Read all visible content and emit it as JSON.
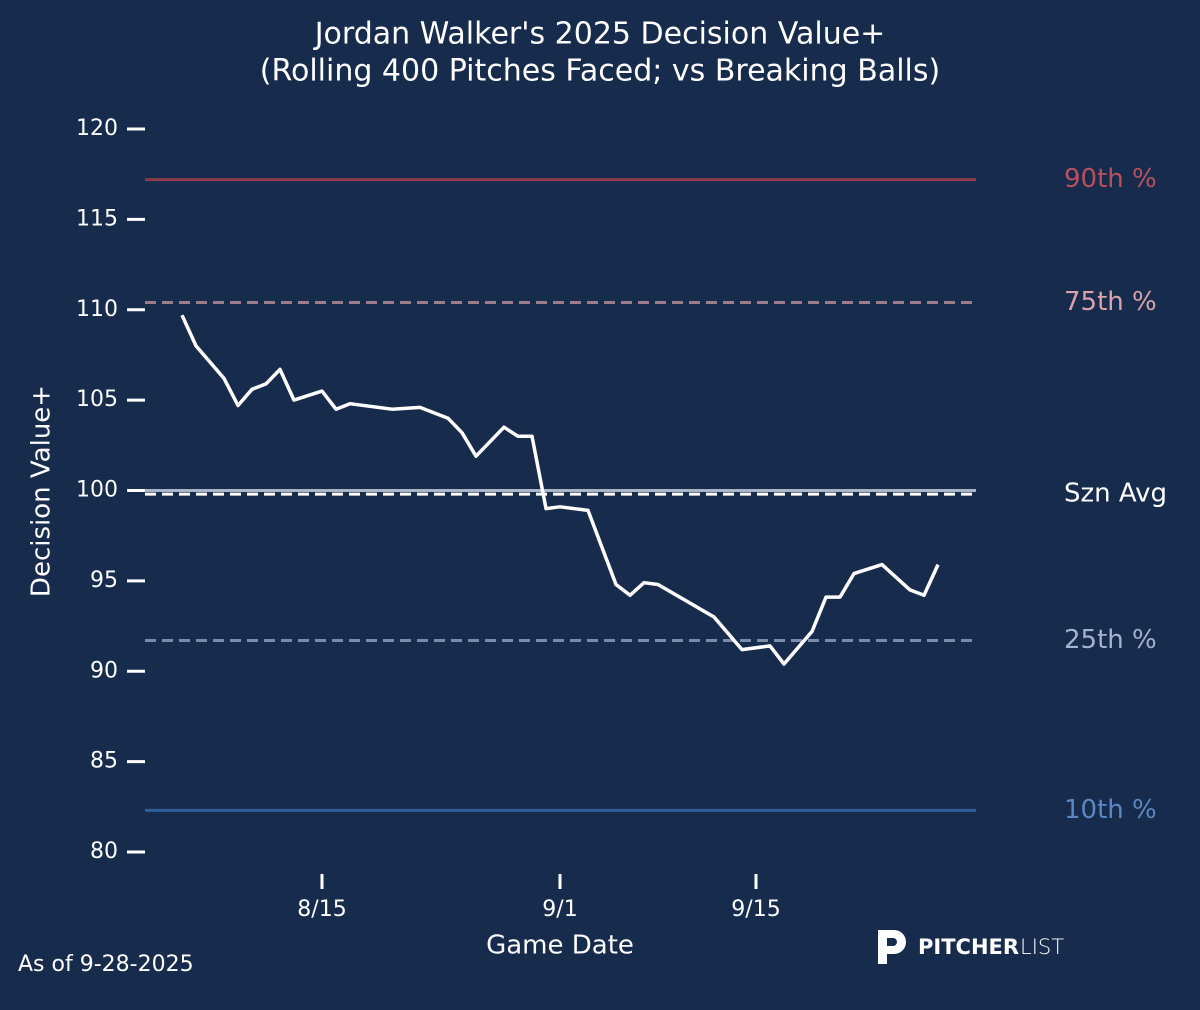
{
  "chart_data": {
    "type": "line",
    "title": "Jordan Walker's 2025 Decision Value+",
    "subtitle": "(Rolling 400 Pitches Faced; vs Breaking Balls)",
    "y_label": "Decision Value+",
    "x_label": "Game Date",
    "footnote": "As of 9-28-2025",
    "brand": {
      "bold": "PITCHER",
      "light": "LIST"
    },
    "x": [
      "8/5",
      "8/6",
      "8/8",
      "8/9",
      "8/10",
      "8/11",
      "8/12",
      "8/13",
      "8/15",
      "8/16",
      "8/17",
      "8/20",
      "8/22",
      "8/24",
      "8/25",
      "8/26",
      "8/27",
      "8/28",
      "8/29",
      "8/30",
      "8/31",
      "9/1",
      "9/3",
      "9/5",
      "9/6",
      "9/7",
      "9/8",
      "9/12",
      "9/14",
      "9/16",
      "9/17",
      "9/19",
      "9/20",
      "9/21",
      "9/22",
      "9/24",
      "9/26",
      "9/27",
      "9/28"
    ],
    "series": [
      {
        "name": "Decision Value+",
        "color": "#ffffff",
        "values": [
          109.7,
          108.0,
          106.2,
          104.7,
          105.6,
          105.9,
          106.7,
          105.0,
          105.5,
          104.5,
          104.8,
          104.5,
          104.6,
          104.0,
          103.2,
          101.9,
          102.7,
          103.5,
          103.0,
          103.0,
          99.0,
          99.1,
          98.9,
          94.8,
          94.2,
          94.9,
          94.8,
          93.0,
          91.2,
          91.4,
          90.4,
          92.2,
          94.1,
          94.1,
          95.4,
          95.9,
          94.5,
          94.2,
          95.9
        ]
      }
    ],
    "reference_lines": [
      {
        "label": "90th %",
        "value": 117.2,
        "color": "#8c3b4b",
        "label_color": "#b9505c",
        "style": "solid"
      },
      {
        "label": "75th %",
        "value": 110.4,
        "color": "#9b7d8c",
        "label_color": "#d8a3ab",
        "style": "dashed"
      },
      {
        "value": 100.0,
        "color": "#aab6c8",
        "style": "solid"
      },
      {
        "label": "Szn Avg",
        "value": 99.8,
        "color": "#ffffff",
        "label_color": "#ffffff",
        "style": "dashed"
      },
      {
        "label": "25th %",
        "value": 91.7,
        "color": "#7b8cab",
        "label_color": "#a3b3cd",
        "style": "dashed"
      },
      {
        "label": "10th %",
        "value": 82.3,
        "color": "#2e5f9c",
        "label_color": "#5c87c2",
        "style": "solid"
      }
    ],
    "xlim": [
      "8/2",
      "10/1"
    ],
    "xticks": [
      "8/15",
      "9/1",
      "9/15"
    ],
    "ylim": [
      80,
      120
    ],
    "yticks": [
      80,
      85,
      90,
      95,
      100,
      105,
      110,
      115,
      120
    ]
  }
}
